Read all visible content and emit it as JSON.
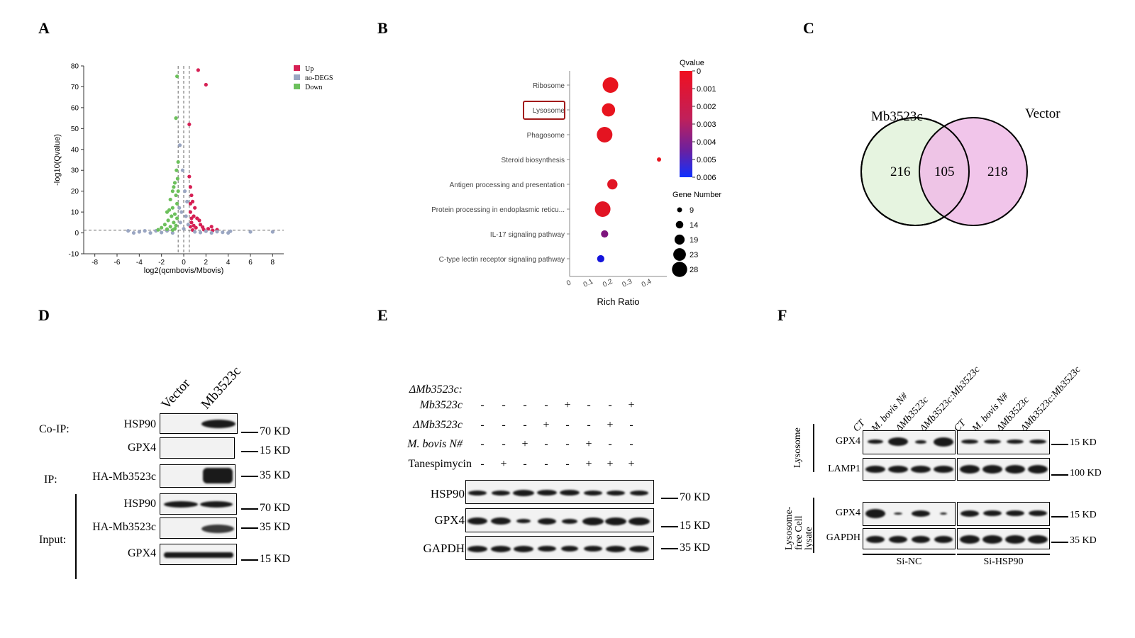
{
  "panel_labels": [
    "A",
    "B",
    "C",
    "D",
    "E",
    "F"
  ],
  "colors": {
    "up": "#d62054",
    "nodegs": "#9aa6c2",
    "down": "#6cc05c",
    "venn_left": "#e6f4e0",
    "venn_right": "#eebbe6"
  },
  "chart_data": [
    {
      "type": "scatter",
      "panel": "A",
      "xlabel": "log2(qcmbovis/Mbovis)",
      "ylabel": "-log10(Qvalue)",
      "xlim": [
        -9,
        9
      ],
      "ylim": [
        -10,
        80
      ],
      "xticks": [
        -8,
        -6,
        -4,
        -2,
        0,
        2,
        4,
        6,
        8
      ],
      "yticks": [
        -10,
        0,
        10,
        20,
        30,
        40,
        50,
        60,
        70,
        80
      ],
      "legend": [
        "Up",
        "no-DEGS",
        "Down"
      ],
      "legend_position": "top-right",
      "thresholds": {
        "x": [
          -0.5,
          0,
          0.5
        ],
        "y": 1.3
      },
      "series": [
        {
          "name": "Up",
          "points": [
            [
              1.3,
              78
            ],
            [
              2.0,
              71
            ],
            [
              0.5,
              52
            ],
            [
              0.5,
              27
            ],
            [
              0.6,
              22
            ],
            [
              0.7,
              18
            ],
            [
              0.8,
              15
            ],
            [
              1.0,
              12
            ],
            [
              0.6,
              10
            ],
            [
              0.9,
              8
            ],
            [
              1.2,
              7
            ],
            [
              0.7,
              5
            ],
            [
              1.5,
              4
            ],
            [
              0.6,
              3
            ],
            [
              1.1,
              2.5
            ],
            [
              2.2,
              2
            ],
            [
              1.8,
              1.6
            ],
            [
              0.8,
              1.4
            ],
            [
              2.6,
              1.2
            ],
            [
              3.0,
              1.5
            ],
            [
              1.4,
              6
            ],
            [
              0.9,
              3.5
            ],
            [
              0.6,
              14
            ],
            [
              1.7,
              2.8
            ],
            [
              0.7,
              7
            ],
            [
              2.5,
              3
            ]
          ]
        },
        {
          "name": "no-DEGS",
          "points": [
            [
              -5.0,
              1
            ],
            [
              -4.5,
              0
            ],
            [
              -4.0,
              0.5
            ],
            [
              -3.5,
              1
            ],
            [
              -3.0,
              0
            ],
            [
              -2.5,
              1
            ],
            [
              -2.0,
              0.2
            ],
            [
              -1.5,
              1
            ],
            [
              -1.0,
              0
            ],
            [
              -0.3,
              5
            ],
            [
              -0.2,
              10
            ],
            [
              0,
              2
            ],
            [
              0.2,
              8
            ],
            [
              0.3,
              15
            ],
            [
              -0.1,
              30
            ],
            [
              0.1,
              20
            ],
            [
              1.0,
              0.5
            ],
            [
              1.5,
              0.2
            ],
            [
              2.0,
              0.8
            ],
            [
              2.5,
              0
            ],
            [
              3.0,
              0.6
            ],
            [
              3.5,
              0.3
            ],
            [
              4.0,
              0
            ],
            [
              4.2,
              0.8
            ],
            [
              6.0,
              0.5
            ],
            [
              8.0,
              0.5
            ],
            [
              -0.4,
              12
            ],
            [
              0.4,
              4
            ],
            [
              -0.35,
              42
            ]
          ]
        },
        {
          "name": "Down",
          "points": [
            [
              -0.6,
              75
            ],
            [
              -0.7,
              55
            ],
            [
              -0.5,
              34
            ],
            [
              -0.8,
              24
            ],
            [
              -0.9,
              22
            ],
            [
              -1.0,
              20
            ],
            [
              -0.7,
              18
            ],
            [
              -1.2,
              16
            ],
            [
              -0.6,
              14
            ],
            [
              -1.0,
              12
            ],
            [
              -1.5,
              10
            ],
            [
              -0.8,
              9
            ],
            [
              -1.1,
              8
            ],
            [
              -0.6,
              7
            ],
            [
              -1.4,
              6
            ],
            [
              -0.9,
              5
            ],
            [
              -1.7,
              4
            ],
            [
              -0.7,
              3.5
            ],
            [
              -1.2,
              3
            ],
            [
              -2.0,
              2.5
            ],
            [
              -0.8,
              2
            ],
            [
              -1.5,
              1.8
            ],
            [
              -2.3,
              1.5
            ],
            [
              -1.0,
              1.4
            ],
            [
              -0.5,
              20
            ],
            [
              -0.55,
              26
            ],
            [
              -1.3,
              11
            ],
            [
              -0.65,
              30
            ]
          ]
        }
      ]
    },
    {
      "type": "scatter",
      "panel": "B",
      "xlabel": "Rich Ratio",
      "xticks": [
        0,
        0.1,
        0.2,
        0.3,
        0.4
      ],
      "xlim": [
        0,
        0.5
      ],
      "categories": [
        "Ribosome",
        "Lysosome",
        "Phagosome",
        "Steroid biosynthesis",
        "Antigen processing and presentation",
        "Protein processing in endoplasmic reticu...",
        "IL-17 signaling pathway",
        "C-type lectin receptor signaling pathway"
      ],
      "highlighted": "Lysosome",
      "rich_ratio": [
        0.21,
        0.2,
        0.18,
        0.46,
        0.22,
        0.17,
        0.18,
        0.16
      ],
      "qvalue": [
        0.0,
        0.0,
        0.0001,
        0.0,
        0.0002,
        0.0002,
        0.003,
        0.006
      ],
      "gene_number": [
        28,
        24,
        28,
        9,
        19,
        28,
        14,
        14
      ],
      "colorbar_title": "Qvalue",
      "colorbar_ticks": [
        "0",
        "0.001",
        "0.002",
        "0.003",
        "0.004",
        "0.005",
        "0.006"
      ],
      "size_legend_title": "Gene Number",
      "size_legend": [
        "9",
        "14",
        "19",
        "23",
        "28"
      ]
    }
  ],
  "venn": {
    "left_label": "Mb3523c",
    "right_label": "Vector",
    "left_only": "216",
    "overlap": "105",
    "right_only": "218"
  },
  "panel_d": {
    "lanes": [
      "Vector",
      "Mb3523c"
    ],
    "groups": [
      "Co-IP:",
      "IP:",
      "Input:"
    ],
    "rows": [
      {
        "label": "HSP90",
        "kd": "70 KD"
      },
      {
        "label": "GPX4",
        "kd": "15 KD"
      },
      {
        "label": "HA-Mb3523c",
        "kd": "35 KD"
      },
      {
        "label": "HSP90",
        "kd": "70 KD"
      },
      {
        "label": "HA-Mb3523c",
        "kd": "35 KD"
      },
      {
        "label": "GPX4",
        "kd": "15 KD"
      }
    ]
  },
  "panel_e": {
    "conditions": [
      {
        "label": "ΔMb3523c:",
        "label2": "Mb3523c",
        "values": [
          "-",
          "-",
          "-",
          "-",
          "+",
          "-",
          "-",
          "+"
        ]
      },
      {
        "label": "ΔMb3523c",
        "values": [
          "-",
          "-",
          "-",
          "+",
          "-",
          "-",
          "+",
          "-"
        ]
      },
      {
        "label": "M. bovis N#",
        "values": [
          "-",
          "-",
          "+",
          "-",
          "-",
          "+",
          "-",
          "-"
        ]
      },
      {
        "label": "Tanespimycin",
        "values": [
          "-",
          "+",
          "-",
          "-",
          "-",
          "+",
          "+",
          "+"
        ]
      }
    ],
    "rows": [
      {
        "label": "HSP90",
        "kd": "70 KD"
      },
      {
        "label": "GPX4",
        "kd": "15 KD"
      },
      {
        "label": "GAPDH",
        "kd": "35 KD"
      }
    ]
  },
  "panel_f": {
    "lanes": [
      "CT",
      "M. bovis N#",
      "ΔMb3523c",
      "ΔMb3523c:Mb3523c"
    ],
    "sections": [
      "Lysosome",
      "Lysosome-free Cell lysate"
    ],
    "rows": [
      {
        "label": "GPX4",
        "kd": "15 KD"
      },
      {
        "label": "LAMP1",
        "kd": "100 KD"
      },
      {
        "label": "GPX4",
        "kd": "15 KD"
      },
      {
        "label": "GAPDH",
        "kd": "35 KD"
      }
    ],
    "groups": [
      "Si-NC",
      "Si-HSP90"
    ]
  }
}
